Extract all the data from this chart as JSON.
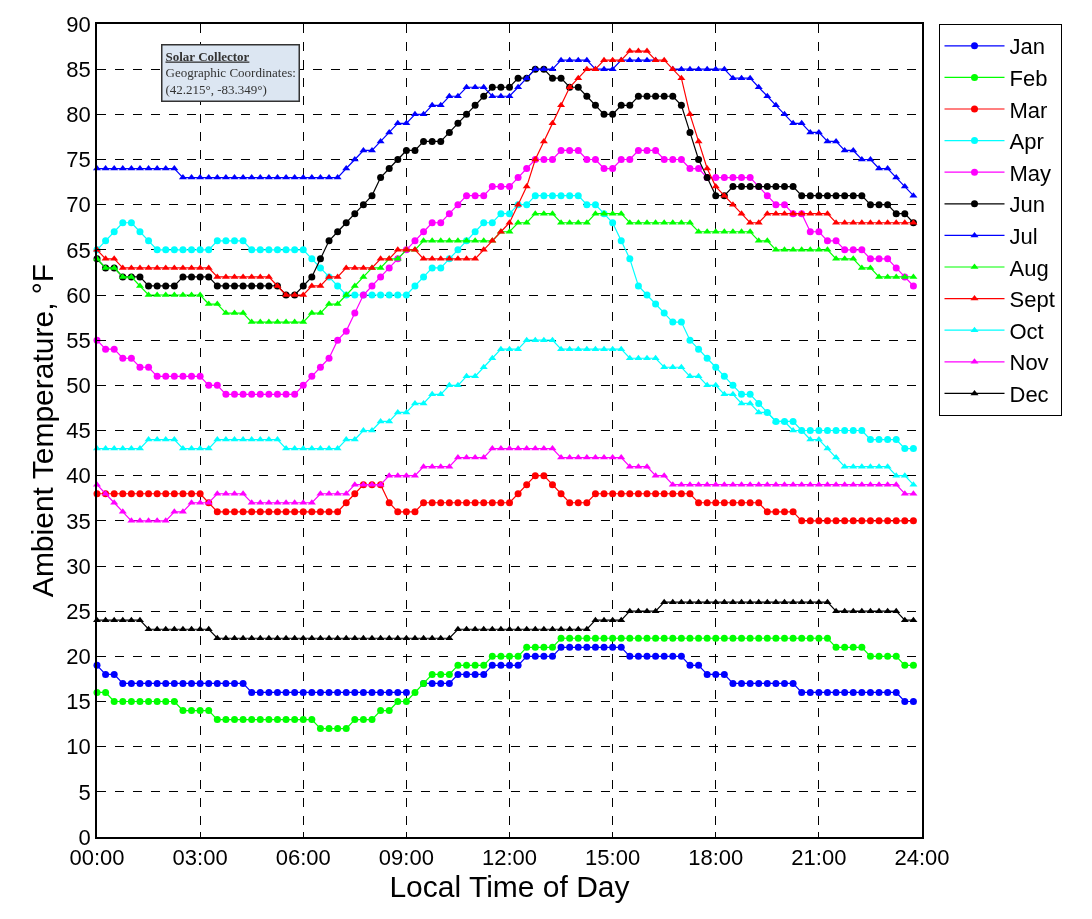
{
  "chart_data": {
    "type": "line",
    "xlabel": "Local Time of Day",
    "ylabel": "Ambient Temperature, °F",
    "annotations": [
      "Solar Collector",
      "Geographic Coordinates:",
      "(42.215°, -83.349°)"
    ],
    "xlim": [
      0,
      24
    ],
    "xticks": [
      {
        "value": 0,
        "label": "00:00"
      },
      {
        "value": 3,
        "label": "03:00"
      },
      {
        "value": 6,
        "label": "06:00"
      },
      {
        "value": 9,
        "label": "09:00"
      },
      {
        "value": 12,
        "label": "12:00"
      },
      {
        "value": 15,
        "label": "15:00"
      },
      {
        "value": 18,
        "label": "18:00"
      },
      {
        "value": 21,
        "label": "21:00"
      },
      {
        "value": 24,
        "label": "24:00"
      }
    ],
    "ylim": [
      0,
      90
    ],
    "yticks": [
      0,
      5,
      10,
      15,
      20,
      25,
      30,
      35,
      40,
      45,
      50,
      55,
      60,
      65,
      70,
      75,
      80,
      85,
      90
    ],
    "grid": true,
    "legend": "right",
    "line_style": "solid",
    "x": [
      0,
      0.25,
      0.5,
      0.75,
      1,
      1.25,
      1.5,
      1.75,
      2,
      2.25,
      2.5,
      2.75,
      3,
      3.25,
      3.5,
      3.75,
      4,
      4.25,
      4.5,
      4.75,
      5,
      5.25,
      5.5,
      5.75,
      6,
      6.25,
      6.5,
      6.75,
      7,
      7.25,
      7.5,
      7.75,
      8,
      8.25,
      8.5,
      8.75,
      9,
      9.25,
      9.5,
      9.75,
      10,
      10.25,
      10.5,
      10.75,
      11,
      11.25,
      11.5,
      11.75,
      12,
      12.25,
      12.5,
      12.75,
      13,
      13.25,
      13.5,
      13.75,
      14,
      14.25,
      14.5,
      14.75,
      15,
      15.25,
      15.5,
      15.75,
      16,
      16.25,
      16.5,
      16.75,
      17,
      17.25,
      17.5,
      17.75,
      18,
      18.25,
      18.5,
      18.75,
      19,
      19.25,
      19.5,
      19.75,
      20,
      20.25,
      20.5,
      20.75,
      21,
      21.25,
      21.5,
      21.75,
      22,
      22.25,
      22.5,
      22.75,
      23,
      23.25,
      23.5,
      23.75
    ],
    "series": [
      {
        "name": "Jan",
        "color": "#0000ff",
        "marker": "circle",
        "values": [
          19,
          18,
          18,
          17,
          17,
          17,
          17,
          17,
          17,
          17,
          17,
          17,
          17,
          17,
          17,
          17,
          17,
          17,
          16,
          16,
          16,
          16,
          16,
          16,
          16,
          16,
          16,
          16,
          16,
          16,
          16,
          16,
          16,
          16,
          16,
          16,
          16,
          null,
          17,
          17,
          17,
          17,
          18,
          18,
          18,
          18,
          19,
          19,
          19,
          19,
          20,
          20,
          20,
          20,
          21,
          21,
          21,
          21,
          21,
          21,
          21,
          21,
          20,
          20,
          20,
          20,
          20,
          20,
          20,
          19,
          19,
          18,
          18,
          18,
          17,
          17,
          17,
          17,
          17,
          17,
          17,
          17,
          16,
          16,
          16,
          16,
          16,
          16,
          16,
          16,
          16,
          16,
          16,
          16,
          15,
          15
        ]
      },
      {
        "name": "Feb",
        "color": "#00ff00",
        "marker": "circle",
        "values": [
          16,
          16,
          15,
          15,
          15,
          15,
          15,
          15,
          15,
          15,
          14,
          14,
          14,
          14,
          13,
          13,
          13,
          13,
          13,
          13,
          13,
          13,
          13,
          13,
          13,
          13,
          12,
          12,
          12,
          12,
          13,
          13,
          13,
          14,
          14,
          15,
          15,
          16,
          17,
          18,
          18,
          18,
          19,
          19,
          19,
          19,
          20,
          20,
          20,
          20,
          21,
          21,
          21,
          21,
          22,
          22,
          22,
          22,
          22,
          22,
          22,
          22,
          22,
          22,
          22,
          22,
          22,
          22,
          22,
          22,
          22,
          22,
          22,
          22,
          22,
          22,
          22,
          22,
          22,
          22,
          22,
          22,
          22,
          22,
          22,
          22,
          21,
          21,
          21,
          21,
          20,
          20,
          20,
          20,
          19,
          19
        ]
      },
      {
        "name": "Mar",
        "color": "#ff0000",
        "marker": "circle",
        "values": [
          38,
          38,
          38,
          38,
          38,
          38,
          38,
          38,
          38,
          38,
          38,
          38,
          38,
          37,
          36,
          36,
          36,
          36,
          36,
          36,
          36,
          36,
          36,
          36,
          36,
          36,
          36,
          36,
          36,
          37,
          38,
          39,
          39,
          39,
          37,
          36,
          36,
          36,
          37,
          37,
          37,
          37,
          37,
          37,
          37,
          37,
          37,
          37,
          37,
          38,
          39,
          40,
          40,
          39,
          38,
          37,
          37,
          37,
          38,
          38,
          38,
          38,
          38,
          38,
          38,
          38,
          38,
          38,
          38,
          38,
          37,
          37,
          37,
          37,
          37,
          37,
          37,
          37,
          36,
          36,
          36,
          36,
          35,
          35,
          35,
          35,
          35,
          35,
          35,
          35,
          35,
          35,
          35,
          35,
          35,
          35
        ]
      },
      {
        "name": "Apr",
        "color": "#00ffff",
        "marker": "circle",
        "values": [
          65,
          66,
          67,
          68,
          68,
          67,
          66,
          65,
          65,
          65,
          65,
          65,
          65,
          65,
          66,
          66,
          66,
          66,
          65,
          65,
          65,
          65,
          65,
          65,
          65,
          64,
          63,
          62,
          61,
          60,
          60,
          60,
          60,
          60,
          60,
          60,
          60,
          61,
          62,
          63,
          63,
          64,
          65,
          66,
          67,
          68,
          68,
          69,
          69,
          70,
          70,
          71,
          71,
          71,
          71,
          71,
          71,
          70,
          70,
          69,
          68,
          66,
          64,
          61,
          60,
          59,
          58,
          57,
          57,
          55,
          54,
          53,
          52,
          51,
          50,
          49,
          49,
          48,
          47,
          46,
          46,
          46,
          45,
          45,
          45,
          45,
          45,
          45,
          45,
          45,
          44,
          44,
          44,
          44,
          43,
          43
        ]
      },
      {
        "name": "May",
        "color": "#ff00ff",
        "marker": "circle",
        "values": [
          55,
          54,
          54,
          53,
          53,
          52,
          52,
          51,
          51,
          51,
          51,
          51,
          51,
          50,
          50,
          49,
          49,
          49,
          49,
          49,
          49,
          49,
          49,
          49,
          50,
          51,
          52,
          53,
          55,
          56,
          58,
          60,
          61,
          62,
          63,
          64,
          65,
          66,
          67,
          68,
          68,
          69,
          70,
          71,
          71,
          71,
          72,
          72,
          72,
          73,
          74,
          75,
          75,
          75,
          76,
          76,
          76,
          75,
          75,
          74,
          74,
          75,
          75,
          76,
          76,
          76,
          75,
          75,
          75,
          74,
          74,
          73,
          73,
          73,
          73,
          73,
          73,
          72,
          71,
          70,
          70,
          69,
          69,
          67,
          67,
          66,
          66,
          65,
          65,
          65,
          64,
          64,
          64,
          63,
          62,
          61
        ]
      },
      {
        "name": "Jun",
        "color": "#000000",
        "marker": "circle",
        "values": [
          64,
          63,
          63,
          62,
          62,
          62,
          61,
          61,
          61,
          61,
          62,
          62,
          62,
          62,
          61,
          61,
          61,
          61,
          61,
          61,
          61,
          61,
          60,
          60,
          61,
          62,
          64,
          66,
          67,
          68,
          69,
          70,
          71,
          73,
          74,
          75,
          76,
          76,
          77,
          77,
          77,
          78,
          79,
          80,
          81,
          82,
          83,
          83,
          83,
          84,
          84,
          85,
          85,
          84,
          84,
          83,
          83,
          82,
          81,
          80,
          80,
          81,
          81,
          82,
          82,
          82,
          82,
          82,
          81,
          78,
          75,
          73,
          71,
          71,
          72,
          72,
          72,
          72,
          72,
          72,
          72,
          72,
          71,
          71,
          71,
          71,
          71,
          71,
          71,
          71,
          70,
          70,
          70,
          69,
          69,
          68
        ]
      },
      {
        "name": "Jul",
        "color": "#0000ff",
        "marker": "triangle",
        "values": [
          74,
          74,
          74,
          74,
          74,
          74,
          74,
          74,
          74,
          74,
          73,
          73,
          73,
          73,
          73,
          73,
          73,
          73,
          73,
          73,
          73,
          73,
          73,
          73,
          73,
          73,
          73,
          73,
          73,
          74,
          75,
          76,
          76,
          77,
          78,
          79,
          79,
          80,
          80,
          81,
          81,
          82,
          82,
          83,
          83,
          83,
          82,
          82,
          82,
          83,
          84,
          85,
          85,
          85,
          86,
          86,
          86,
          86,
          85,
          85,
          85,
          86,
          86,
          86,
          86,
          86,
          null,
          85,
          85,
          85,
          85,
          85,
          85,
          85,
          84,
          84,
          84,
          83,
          82,
          81,
          80,
          79,
          79,
          78,
          78,
          77,
          77,
          76,
          76,
          75,
          75,
          74,
          74,
          73,
          72,
          71
        ]
      },
      {
        "name": "Aug",
        "color": "#00ff00",
        "marker": "triangle",
        "values": [
          64,
          63,
          63,
          62,
          62,
          61,
          60,
          60,
          60,
          60,
          60,
          60,
          60,
          59,
          59,
          58,
          58,
          58,
          57,
          57,
          57,
          57,
          57,
          57,
          57,
          58,
          58,
          59,
          59,
          60,
          61,
          62,
          63,
          63,
          64,
          64,
          65,
          65,
          66,
          66,
          66,
          66,
          66,
          66,
          66,
          66,
          66,
          67,
          67,
          68,
          68,
          69,
          69,
          69,
          68,
          68,
          68,
          68,
          69,
          69,
          69,
          69,
          68,
          68,
          68,
          68,
          68,
          68,
          68,
          68,
          67,
          67,
          67,
          67,
          67,
          67,
          67,
          66,
          66,
          65,
          65,
          65,
          65,
          65,
          65,
          65,
          64,
          64,
          64,
          63,
          63,
          62,
          62,
          62,
          62,
          62
        ]
      },
      {
        "name": "Sept",
        "color": "#ff0000",
        "marker": "triangle",
        "values": [
          65,
          64,
          64,
          63,
          63,
          63,
          63,
          63,
          63,
          63,
          63,
          63,
          63,
          63,
          62,
          62,
          62,
          62,
          62,
          62,
          62,
          61,
          60,
          60,
          60,
          61,
          61,
          62,
          62,
          63,
          63,
          63,
          63,
          64,
          64,
          65,
          65,
          65,
          64,
          64,
          64,
          64,
          64,
          64,
          64,
          65,
          66,
          67,
          68,
          70,
          72,
          75,
          77,
          79,
          81,
          83,
          84,
          85,
          85,
          86,
          86,
          86,
          87,
          87,
          87,
          86,
          86,
          85,
          84,
          80,
          77,
          74,
          72,
          71,
          70,
          69,
          68,
          68,
          69,
          69,
          69,
          69,
          69,
          69,
          69,
          69,
          68,
          68,
          68,
          68,
          68,
          68,
          68,
          68,
          68,
          68
        ]
      },
      {
        "name": "Oct",
        "color": "#00ffff",
        "marker": "triangle",
        "values": [
          43,
          43,
          43,
          43,
          43,
          43,
          44,
          44,
          44,
          44,
          43,
          43,
          43,
          43,
          44,
          44,
          44,
          44,
          44,
          44,
          44,
          44,
          43,
          43,
          43,
          43,
          43,
          43,
          43,
          44,
          44,
          45,
          45,
          46,
          46,
          47,
          47,
          48,
          48,
          49,
          49,
          50,
          50,
          51,
          51,
          52,
          53,
          54,
          54,
          54,
          55,
          55,
          55,
          55,
          54,
          54,
          54,
          54,
          54,
          54,
          54,
          54,
          53,
          53,
          53,
          53,
          52,
          52,
          52,
          51,
          51,
          50,
          50,
          49,
          49,
          48,
          48,
          47,
          47,
          46,
          46,
          45,
          45,
          44,
          44,
          43,
          42,
          41,
          41,
          41,
          41,
          41,
          41,
          40,
          40,
          39
        ]
      },
      {
        "name": "Nov",
        "color": "#ff00ff",
        "marker": "triangle",
        "values": [
          39,
          38,
          37,
          36,
          35,
          35,
          35,
          35,
          35,
          36,
          36,
          37,
          37,
          37,
          38,
          38,
          38,
          38,
          37,
          37,
          37,
          37,
          37,
          37,
          37,
          37,
          38,
          38,
          38,
          38,
          39,
          39,
          39,
          39,
          40,
          40,
          40,
          40,
          41,
          41,
          41,
          41,
          42,
          42,
          42,
          42,
          43,
          43,
          43,
          43,
          43,
          43,
          43,
          43,
          42,
          42,
          42,
          42,
          42,
          42,
          42,
          42,
          41,
          41,
          41,
          40,
          40,
          39,
          39,
          39,
          39,
          39,
          39,
          39,
          39,
          39,
          39,
          39,
          39,
          39,
          39,
          39,
          39,
          39,
          39,
          39,
          39,
          39,
          39,
          39,
          39,
          39,
          39,
          39,
          38,
          38
        ]
      },
      {
        "name": "Dec",
        "color": "#000000",
        "marker": "triangle",
        "values": [
          24,
          24,
          24,
          24,
          24,
          24,
          23,
          23,
          23,
          23,
          23,
          23,
          23,
          23,
          22,
          22,
          22,
          22,
          22,
          22,
          22,
          22,
          22,
          22,
          22,
          22,
          22,
          22,
          22,
          22,
          22,
          22,
          22,
          22,
          22,
          22,
          22,
          22,
          22,
          22,
          22,
          22,
          23,
          23,
          23,
          23,
          23,
          23,
          23,
          23,
          23,
          23,
          23,
          23,
          23,
          23,
          23,
          23,
          24,
          24,
          24,
          24,
          25,
          25,
          25,
          25,
          26,
          26,
          26,
          26,
          26,
          26,
          26,
          26,
          26,
          26,
          26,
          26,
          26,
          26,
          26,
          26,
          26,
          26,
          26,
          26,
          25,
          25,
          25,
          25,
          25,
          25,
          25,
          25,
          24,
          24
        ]
      }
    ]
  }
}
